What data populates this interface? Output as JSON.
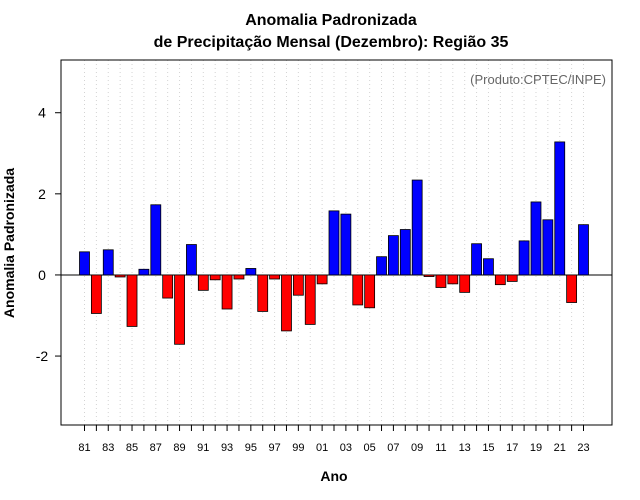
{
  "chart_data": {
    "type": "bar",
    "title_line1": "Anomalia Padronizada",
    "title_line2": "de Precipitação Mensal (Dezembro): Região 35",
    "xlabel": "Ano",
    "ylabel": "Anomalia Padronizada",
    "credit": "(Produto:CPTEC/INPE)",
    "ylim": [
      -3.7,
      5.3
    ],
    "yticks": [
      -2,
      0,
      2,
      4
    ],
    "ytick_labels": [
      "-2",
      "0",
      "2",
      "4"
    ],
    "grid": true,
    "colors": {
      "positive": "#0000ff",
      "negative": "#ff0000"
    },
    "categories": [
      "81",
      "82",
      "83",
      "84",
      "85",
      "86",
      "87",
      "88",
      "89",
      "90",
      "91",
      "92",
      "93",
      "94",
      "95",
      "96",
      "97",
      "98",
      "99",
      "00",
      "01",
      "02",
      "03",
      "04",
      "05",
      "06",
      "07",
      "08",
      "09",
      "10",
      "11",
      "12",
      "13",
      "14",
      "15",
      "16",
      "17",
      "18",
      "19",
      "20",
      "21",
      "22",
      "23"
    ],
    "xtick_labels": [
      "81",
      "83",
      "85",
      "87",
      "89",
      "91",
      "93",
      "95",
      "97",
      "99",
      "01",
      "03",
      "05",
      "07",
      "09",
      "11",
      "13",
      "15",
      "17",
      "19",
      "21",
      "23"
    ],
    "values": [
      0.57,
      -0.95,
      0.62,
      -0.05,
      -1.27,
      0.14,
      1.73,
      -0.57,
      -1.71,
      0.75,
      -0.38,
      -0.12,
      -0.84,
      -0.1,
      0.16,
      -0.9,
      -0.1,
      -1.38,
      -0.5,
      -1.22,
      -0.22,
      1.58,
      1.5,
      -0.74,
      -0.81,
      0.45,
      0.97,
      1.12,
      2.34,
      -0.04,
      -0.31,
      -0.22,
      -0.43,
      0.77,
      0.4,
      -0.24,
      -0.16,
      0.84,
      1.8,
      1.36,
      3.28,
      -0.68,
      1.24
    ]
  }
}
